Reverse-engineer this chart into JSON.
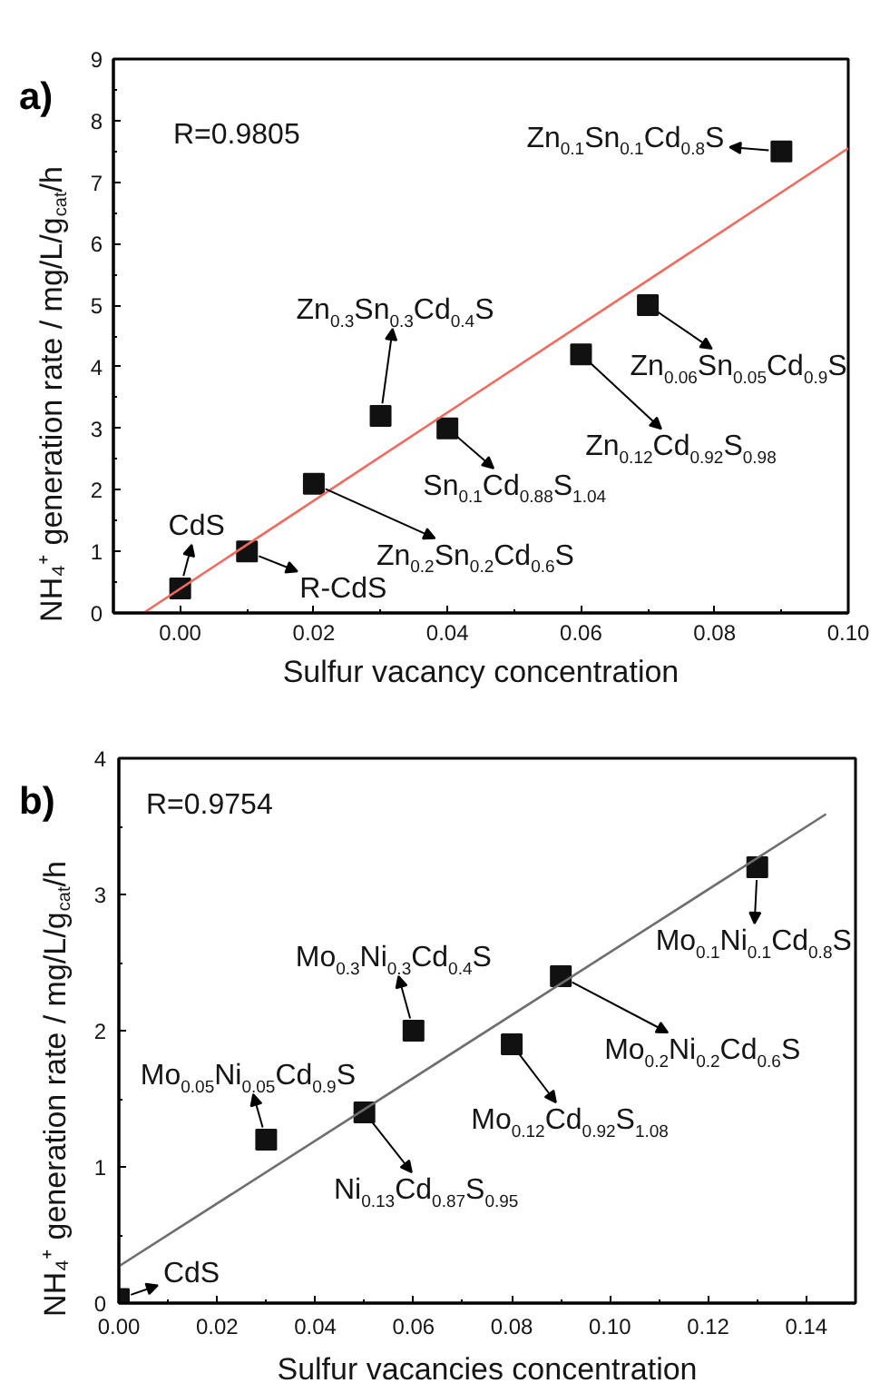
{
  "chart_data": [
    {
      "type": "scatter",
      "title": "a)",
      "xlabel": "Sulfur vacancy concentration",
      "ylabel": "NH₄⁺ generation rate / mg/L/g$_{cat}$/h",
      "xlim": [
        -0.01,
        0.1
      ],
      "ylim": [
        0,
        9
      ],
      "xticks": [
        {
          "value": 0,
          "label": "0.00"
        },
        {
          "value": 0.01,
          "label": null
        },
        {
          "value": 0.02,
          "label": "0.02"
        },
        {
          "value": 0.03,
          "label": null
        },
        {
          "value": 0.04,
          "label": "0.04"
        },
        {
          "value": 0.05,
          "label": null
        },
        {
          "value": 0.06,
          "label": "0.06"
        },
        {
          "value": 0.07,
          "label": null
        },
        {
          "value": 0.08,
          "label": "0.08"
        },
        {
          "value": 0.09,
          "label": null
        },
        {
          "value": 0.1,
          "label": "0.10"
        }
      ],
      "yticks": [
        0,
        {
          "value": 0.5,
          "label": null
        },
        1,
        {
          "value": 1.5,
          "label": null
        },
        2,
        {
          "value": 2.5,
          "label": null
        },
        3,
        {
          "value": 3.5,
          "label": null
        },
        4,
        {
          "value": 4.5,
          "label": null
        },
        5,
        {
          "value": 5.5,
          "label": null
        },
        6,
        {
          "value": 6.5,
          "label": null
        },
        7,
        {
          "value": 7.5,
          "label": null
        },
        8,
        {
          "value": 8.5,
          "label": null
        },
        9
      ],
      "marker": "square",
      "series": [
        {
          "color": "#111111",
          "x": [
            0,
            0.01,
            0.02,
            0.03,
            0.04,
            0.06,
            0.07,
            0.09
          ],
          "values": [
            0.4,
            1.0,
            2.1,
            3.2,
            3.0,
            4.2,
            5.0,
            7.5
          ]
        },
        {
          "type": "line",
          "color": "#f26a5e",
          "marker": "none",
          "x": [
            -0.0055,
            0.1
          ],
          "values": [
            0,
            7.55
          ]
        }
      ],
      "annotations": [
        "R=0.9805",
        {
          "text": "CdS",
          "x": 0,
          "y": 0.4
        },
        {
          "text": "R-CdS",
          "x": 0.01,
          "y": 1.0
        },
        {
          "text": "Zn$_{0.2}$Sn$_{0.2}$Cd$_{0.6}$S",
          "x": 0.02,
          "y": 2.1
        },
        {
          "text": "Zn$_{0.3}$Sn$_{0.3}$Cd$_{0.4}$S",
          "x": 0.03,
          "y": 3.2
        },
        {
          "text": "Sn$_{0.1}$Cd$_{0.88}$S$_{1.04}$",
          "x": 0.04,
          "y": 3.0
        },
        {
          "text": "Zn$_{0.12}$Cd$_{0.92}$S$_{0.98}$",
          "x": 0.06,
          "y": 4.2
        },
        {
          "text": "Zn$_{0.06}$Sn$_{0.05}$Cd$_{0.9}$S",
          "x": 0.07,
          "y": 5.0
        },
        {
          "text": "Zn$_{0.1}$Sn$_{0.1}$Cd$_{0.8}$S",
          "x": 0.09,
          "y": 7.5
        }
      ]
    },
    {
      "type": "scatter",
      "title": "b)",
      "xlabel": "Sulfur vacancies concentration",
      "ylabel": "NH₄⁺ generation rate / mg/L/g$_{cat}$/h",
      "xlim": [
        0,
        0.15
      ],
      "ylim": [
        0,
        4
      ],
      "xticks": [
        {
          "value": 0,
          "label": "0.00"
        },
        {
          "value": 0.01,
          "label": null
        },
        {
          "value": 0.02,
          "label": "0.02"
        },
        {
          "value": 0.03,
          "label": null
        },
        {
          "value": 0.04,
          "label": "0.04"
        },
        {
          "value": 0.05,
          "label": null
        },
        {
          "value": 0.06,
          "label": "0.06"
        },
        {
          "value": 0.07,
          "label": null
        },
        {
          "value": 0.08,
          "label": "0.08"
        },
        {
          "value": 0.09,
          "label": null
        },
        {
          "value": 0.1,
          "label": "0.10"
        },
        {
          "value": 0.11,
          "label": null
        },
        {
          "value": 0.12,
          "label": "0.12"
        },
        {
          "value": 0.13,
          "label": null
        },
        {
          "value": 0.14,
          "label": "0.14"
        }
      ],
      "yticks": [
        0,
        {
          "value": 0.5,
          "label": null
        },
        1,
        {
          "value": 1.5,
          "label": null
        },
        2,
        {
          "value": 2.5,
          "label": null
        },
        3,
        {
          "value": 3.5,
          "label": null
        },
        4
      ],
      "marker": "square",
      "series": [
        {
          "color": "#111111",
          "x": [
            0,
            0.03,
            0.05,
            0.06,
            0.08,
            0.09,
            0.13
          ],
          "values": [
            0.03,
            1.2,
            1.4,
            2.0,
            1.9,
            2.4,
            3.2
          ]
        },
        {
          "type": "line",
          "color": "#6e6e6e",
          "marker": "none",
          "x": [
            0,
            0.144
          ],
          "values": [
            0.27,
            3.59
          ]
        }
      ],
      "annotations": [
        "R=0.9754",
        {
          "text": "CdS",
          "x": 0,
          "y": 0.03
        },
        {
          "text": "Mo$_{0.05}$Ni$_{0.05}$Cd$_{0.9}$S",
          "x": 0.03,
          "y": 1.2
        },
        {
          "text": "Ni$_{0.13}$Cd$_{0.87}$S$_{0.95}$",
          "x": 0.05,
          "y": 1.4
        },
        {
          "text": "Mo$_{0.3}$Ni$_{0.3}$Cd$_{0.4}$S",
          "x": 0.06,
          "y": 2.0
        },
        {
          "text": "Mo$_{0.12}$Cd$_{0.92}$S$_{1.08}$",
          "x": 0.08,
          "y": 1.9
        },
        {
          "text": "Mo$_{0.2}$Ni$_{0.2}$Cd$_{0.6}$S",
          "x": 0.09,
          "y": 2.4
        },
        {
          "text": "Mo$_{0.1}$Ni$_{0.1}$Cd$_{0.8}$S",
          "x": 0.13,
          "y": 3.2
        }
      ]
    }
  ]
}
